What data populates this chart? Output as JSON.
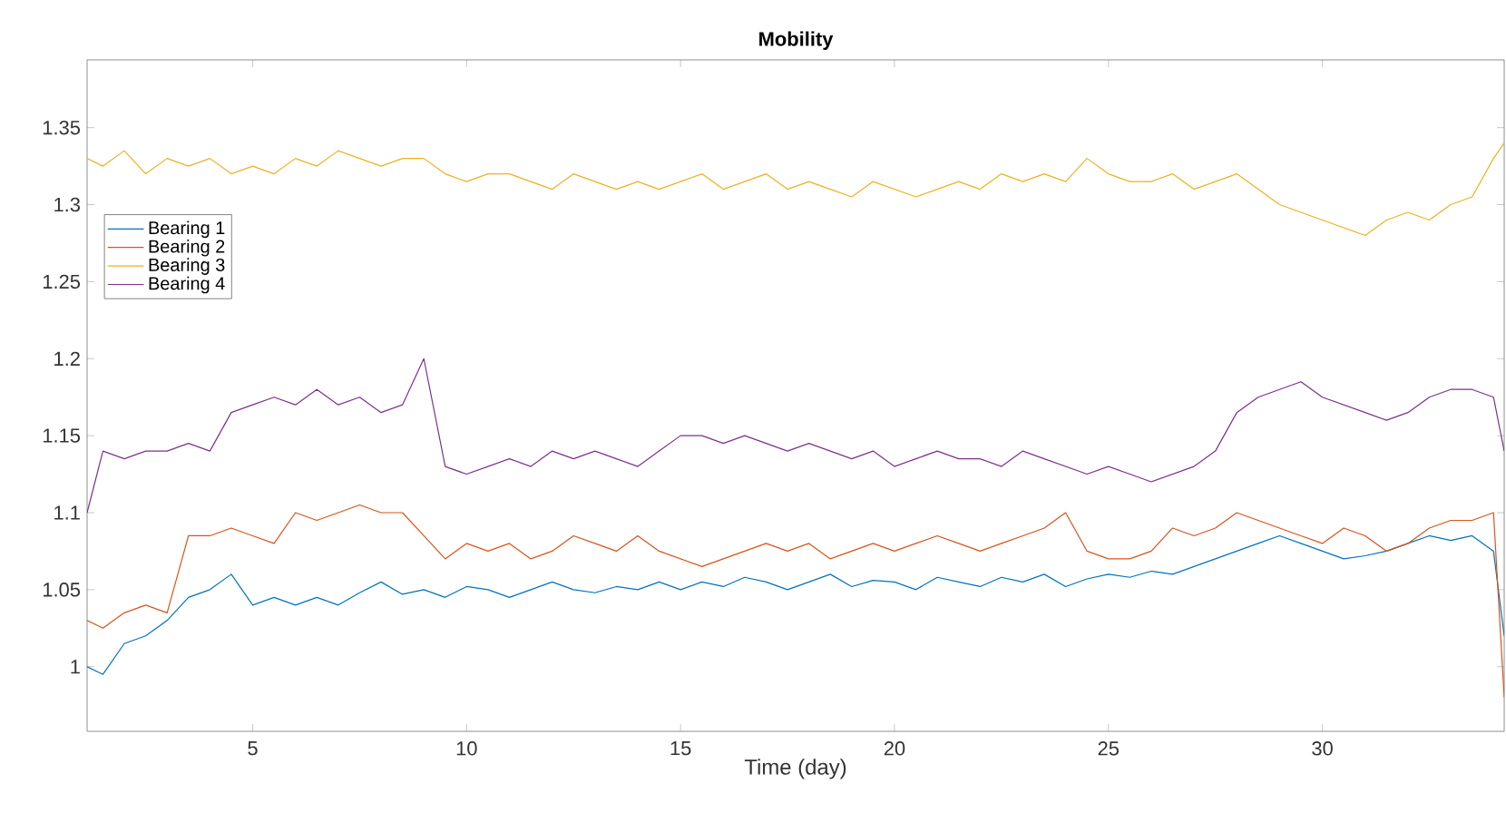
{
  "chart_data": {
    "type": "line",
    "title": "Mobility",
    "xlabel": "Time (day)",
    "x": [
      1.13,
      1.5,
      2,
      2.5,
      3,
      3.5,
      4,
      4.5,
      5,
      5.5,
      6,
      6.5,
      7,
      7.5,
      8,
      8.5,
      9,
      9.5,
      10,
      10.5,
      11,
      11.5,
      12,
      12.5,
      13,
      13.5,
      14,
      14.5,
      15,
      15.5,
      16,
      16.5,
      17,
      17.5,
      18,
      18.5,
      19,
      19.5,
      20,
      20.5,
      21,
      21.5,
      22,
      22.5,
      23,
      23.5,
      24,
      24.5,
      25,
      25.5,
      26,
      26.5,
      27,
      27.5,
      28,
      28.5,
      29,
      29.5,
      30,
      30.5,
      31,
      31.5,
      32,
      32.5,
      33,
      33.5,
      34,
      34.25
    ],
    "series": [
      {
        "name": "Bearing 1",
        "color": "#0072bd",
        "values": [
          1.0,
          0.995,
          1.015,
          1.02,
          1.03,
          1.045,
          1.05,
          1.06,
          1.04,
          1.045,
          1.04,
          1.045,
          1.04,
          1.048,
          1.055,
          1.047,
          1.05,
          1.045,
          1.052,
          1.05,
          1.045,
          1.05,
          1.055,
          1.05,
          1.048,
          1.052,
          1.05,
          1.055,
          1.05,
          1.055,
          1.052,
          1.058,
          1.055,
          1.05,
          1.055,
          1.06,
          1.052,
          1.056,
          1.055,
          1.05,
          1.058,
          1.055,
          1.052,
          1.058,
          1.055,
          1.06,
          1.052,
          1.057,
          1.06,
          1.058,
          1.062,
          1.06,
          1.065,
          1.07,
          1.075,
          1.08,
          1.085,
          1.08,
          1.075,
          1.07,
          1.072,
          1.075,
          1.08,
          1.085,
          1.082,
          1.085,
          1.075,
          1.02
        ]
      },
      {
        "name": "Bearing 2",
        "color": "#d95319",
        "values": [
          1.03,
          1.025,
          1.035,
          1.04,
          1.035,
          1.085,
          1.085,
          1.09,
          1.085,
          1.08,
          1.1,
          1.095,
          1.1,
          1.105,
          1.1,
          1.1,
          1.085,
          1.07,
          1.08,
          1.075,
          1.08,
          1.07,
          1.075,
          1.085,
          1.08,
          1.075,
          1.085,
          1.075,
          1.07,
          1.065,
          1.07,
          1.075,
          1.08,
          1.075,
          1.08,
          1.07,
          1.075,
          1.08,
          1.075,
          1.08,
          1.085,
          1.08,
          1.075,
          1.08,
          1.085,
          1.09,
          1.1,
          1.075,
          1.07,
          1.07,
          1.075,
          1.09,
          1.085,
          1.09,
          1.1,
          1.095,
          1.09,
          1.085,
          1.08,
          1.09,
          1.085,
          1.075,
          1.08,
          1.09,
          1.095,
          1.095,
          1.1,
          0.98
        ]
      },
      {
        "name": "Bearing 3",
        "color": "#edb120",
        "values": [
          1.33,
          1.325,
          1.335,
          1.32,
          1.33,
          1.325,
          1.33,
          1.32,
          1.325,
          1.32,
          1.33,
          1.325,
          1.335,
          1.33,
          1.325,
          1.33,
          1.33,
          1.32,
          1.315,
          1.32,
          1.32,
          1.315,
          1.31,
          1.32,
          1.315,
          1.31,
          1.315,
          1.31,
          1.315,
          1.32,
          1.31,
          1.315,
          1.32,
          1.31,
          1.315,
          1.31,
          1.305,
          1.315,
          1.31,
          1.305,
          1.31,
          1.315,
          1.31,
          1.32,
          1.315,
          1.32,
          1.315,
          1.33,
          1.32,
          1.315,
          1.315,
          1.32,
          1.31,
          1.315,
          1.32,
          1.31,
          1.3,
          1.295,
          1.29,
          1.285,
          1.28,
          1.29,
          1.295,
          1.29,
          1.3,
          1.305,
          1.33,
          1.34
        ]
      },
      {
        "name": "Bearing 4",
        "color": "#7e2f8e",
        "values": [
          1.1,
          1.14,
          1.135,
          1.14,
          1.14,
          1.145,
          1.14,
          1.165,
          1.17,
          1.175,
          1.17,
          1.18,
          1.17,
          1.175,
          1.165,
          1.17,
          1.2,
          1.13,
          1.125,
          1.13,
          1.135,
          1.13,
          1.14,
          1.135,
          1.14,
          1.135,
          1.13,
          1.14,
          1.15,
          1.15,
          1.145,
          1.15,
          1.145,
          1.14,
          1.145,
          1.14,
          1.135,
          1.14,
          1.13,
          1.135,
          1.14,
          1.135,
          1.135,
          1.13,
          1.14,
          1.135,
          1.13,
          1.125,
          1.13,
          1.125,
          1.12,
          1.125,
          1.13,
          1.14,
          1.165,
          1.175,
          1.18,
          1.185,
          1.175,
          1.17,
          1.165,
          1.16,
          1.165,
          1.175,
          1.18,
          1.18,
          1.175,
          1.14
        ]
      }
    ],
    "xlim": [
      1.13,
      34.25
    ],
    "ylim": [
      0.958,
      1.394
    ],
    "xticks": [
      5,
      10,
      15,
      20,
      25,
      30
    ],
    "yticks": [
      1,
      1.05,
      1.1,
      1.15,
      1.2,
      1.25,
      1.3,
      1.35
    ],
    "grid": false,
    "legend": "left",
    "marker": "none",
    "line_style": "solid"
  }
}
